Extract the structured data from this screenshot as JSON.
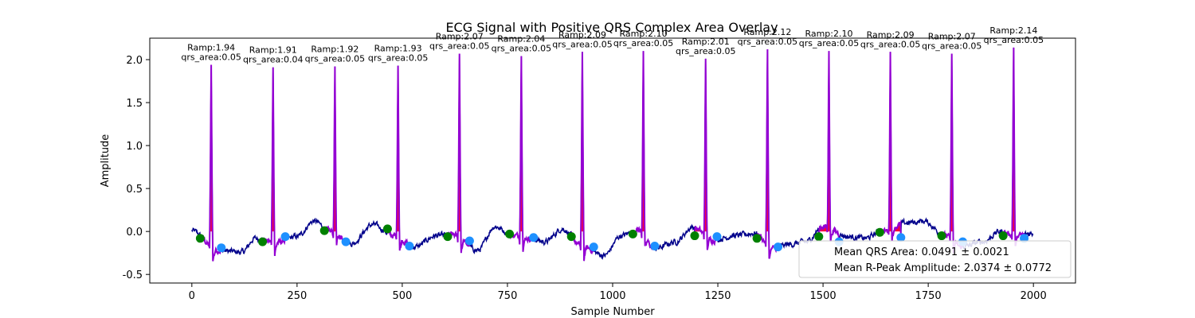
{
  "chart_data": {
    "type": "line",
    "title": "ECG Signal with Positive QRS Complex Area Overlay",
    "xlabel": "Sample Number",
    "ylabel": "Amplitude",
    "xlim": [
      -100,
      2100
    ],
    "ylim": [
      -0.6,
      2.25
    ],
    "xticks": [
      0,
      250,
      500,
      750,
      1000,
      1250,
      1500,
      1750,
      2000
    ],
    "yticks": [
      -0.5,
      0.0,
      0.5,
      1.0,
      1.5,
      2.0
    ],
    "grid": false,
    "colors": {
      "ecg": "#00008b",
      "qrs_segment": "#9400d3",
      "qrs_area_fill": "#ff0033",
      "qrs_onset_marker": "#008000",
      "qrs_offset_marker": "#1e90ff"
    },
    "series": [
      {
        "kind": "ecg_signal",
        "length": 2000,
        "baseline_wander": [
          [
            0,
            0.01
          ],
          [
            60,
            -0.22
          ],
          [
            120,
            -0.24
          ],
          [
            150,
            -0.08
          ],
          [
            200,
            -0.13
          ],
          [
            250,
            -0.06
          ],
          [
            290,
            0.12
          ],
          [
            330,
            0.0
          ],
          [
            380,
            -0.14
          ],
          [
            430,
            0.08
          ],
          [
            480,
            -0.05
          ],
          [
            530,
            -0.18
          ],
          [
            580,
            -0.05
          ],
          [
            620,
            -0.04
          ],
          [
            680,
            -0.22
          ],
          [
            720,
            0.06
          ],
          [
            760,
            -0.04
          ],
          [
            800,
            -0.08
          ],
          [
            840,
            -0.12
          ],
          [
            880,
            0.03
          ],
          [
            930,
            -0.18
          ],
          [
            980,
            -0.28
          ],
          [
            1020,
            -0.05
          ],
          [
            1060,
            0.02
          ],
          [
            1100,
            -0.2
          ],
          [
            1150,
            -0.12
          ],
          [
            1190,
            0.05
          ],
          [
            1240,
            -0.1
          ],
          [
            1290,
            -0.05
          ],
          [
            1340,
            -0.02
          ],
          [
            1380,
            -0.2
          ],
          [
            1420,
            -0.15
          ],
          [
            1460,
            -0.12
          ],
          [
            1500,
            0.06
          ],
          [
            1560,
            -0.06
          ],
          [
            1600,
            -0.08
          ],
          [
            1640,
            0.0
          ],
          [
            1700,
            0.1
          ],
          [
            1740,
            0.12
          ],
          [
            1790,
            -0.05
          ],
          [
            1830,
            -0.18
          ],
          [
            1880,
            -0.12
          ],
          [
            1920,
            0.0
          ],
          [
            1960,
            -0.05
          ],
          [
            2000,
            -0.02
          ]
        ]
      }
    ],
    "beats": [
      {
        "r_index": 46,
        "r_amp": 1.94,
        "qrs_area": 0.05,
        "onset_index": 20,
        "onset_amp": -0.08,
        "offset_index": 70,
        "offset_amp": -0.19,
        "label": "Ramp:1.94\nqrs_area:0.05"
      },
      {
        "r_index": 193,
        "r_amp": 1.91,
        "qrs_area": 0.04,
        "onset_index": 168,
        "onset_amp": -0.12,
        "offset_index": 222,
        "offset_amp": -0.06,
        "label": "Ramp:1.91\nqrs_area:0.04"
      },
      {
        "r_index": 340,
        "r_amp": 1.92,
        "qrs_area": 0.05,
        "onset_index": 315,
        "onset_amp": 0.01,
        "offset_index": 366,
        "offset_amp": -0.12,
        "label": "Ramp:1.92\nqrs_area:0.05"
      },
      {
        "r_index": 490,
        "r_amp": 1.93,
        "qrs_area": 0.05,
        "onset_index": 465,
        "onset_amp": 0.03,
        "offset_index": 517,
        "offset_amp": -0.17,
        "label": "Ramp:1.93\nqrs_area:0.05"
      },
      {
        "r_index": 636,
        "r_amp": 2.07,
        "qrs_area": 0.05,
        "onset_index": 608,
        "onset_amp": -0.06,
        "offset_index": 660,
        "offset_amp": -0.11,
        "label": "Ramp:2.07\nqrs_area:0.05"
      },
      {
        "r_index": 783,
        "r_amp": 2.04,
        "qrs_area": 0.05,
        "onset_index": 755,
        "onset_amp": -0.03,
        "offset_index": 812,
        "offset_amp": -0.07,
        "label": "Ramp:2.04\nqrs_area:0.05"
      },
      {
        "r_index": 928,
        "r_amp": 2.09,
        "qrs_area": 0.05,
        "onset_index": 902,
        "onset_amp": -0.06,
        "offset_index": 955,
        "offset_amp": -0.18,
        "label": "Ramp:2.09\nqrs_area:0.05"
      },
      {
        "r_index": 1073,
        "r_amp": 2.1,
        "qrs_area": 0.05,
        "onset_index": 1048,
        "onset_amp": -0.03,
        "offset_index": 1100,
        "offset_amp": -0.17,
        "label": "Ramp:2.10\nqrs_area:0.05"
      },
      {
        "r_index": 1221,
        "r_amp": 2.01,
        "qrs_area": 0.05,
        "onset_index": 1195,
        "onset_amp": -0.05,
        "offset_index": 1248,
        "offset_amp": -0.06,
        "label": "Ramp:2.01\nqrs_area:0.05"
      },
      {
        "r_index": 1368,
        "r_amp": 2.12,
        "qrs_area": 0.05,
        "onset_index": 1343,
        "onset_amp": -0.08,
        "offset_index": 1393,
        "offset_amp": -0.18,
        "label": "Ramp:2.12\nqrs_area:0.05"
      },
      {
        "r_index": 1514,
        "r_amp": 2.1,
        "qrs_area": 0.05,
        "onset_index": 1490,
        "onset_amp": -0.06,
        "offset_index": 1538,
        "offset_amp": -0.12,
        "label": "Ramp:2.10\nqrs_area:0.05"
      },
      {
        "r_index": 1660,
        "r_amp": 2.09,
        "qrs_area": 0.05,
        "onset_index": 1635,
        "onset_amp": -0.01,
        "offset_index": 1685,
        "offset_amp": -0.07,
        "label": "Ramp:2.09\nqrs_area:0.05"
      },
      {
        "r_index": 1806,
        "r_amp": 2.07,
        "qrs_area": 0.05,
        "onset_index": 1782,
        "onset_amp": -0.05,
        "offset_index": 1832,
        "offset_amp": -0.12,
        "label": "Ramp:2.07\nqrs_area:0.05"
      },
      {
        "r_index": 1953,
        "r_amp": 2.14,
        "qrs_area": 0.05,
        "onset_index": 1928,
        "onset_amp": -0.05,
        "offset_index": 1978,
        "offset_amp": -0.08,
        "label": "Ramp:2.14\nqrs_area:0.05"
      }
    ],
    "legend": {
      "placement": "lower-right",
      "entries": [
        "Mean QRS Area: 0.0491 ± 0.0021",
        "Mean R-Peak Amplitude: 2.0374 ± 0.0772"
      ]
    }
  }
}
